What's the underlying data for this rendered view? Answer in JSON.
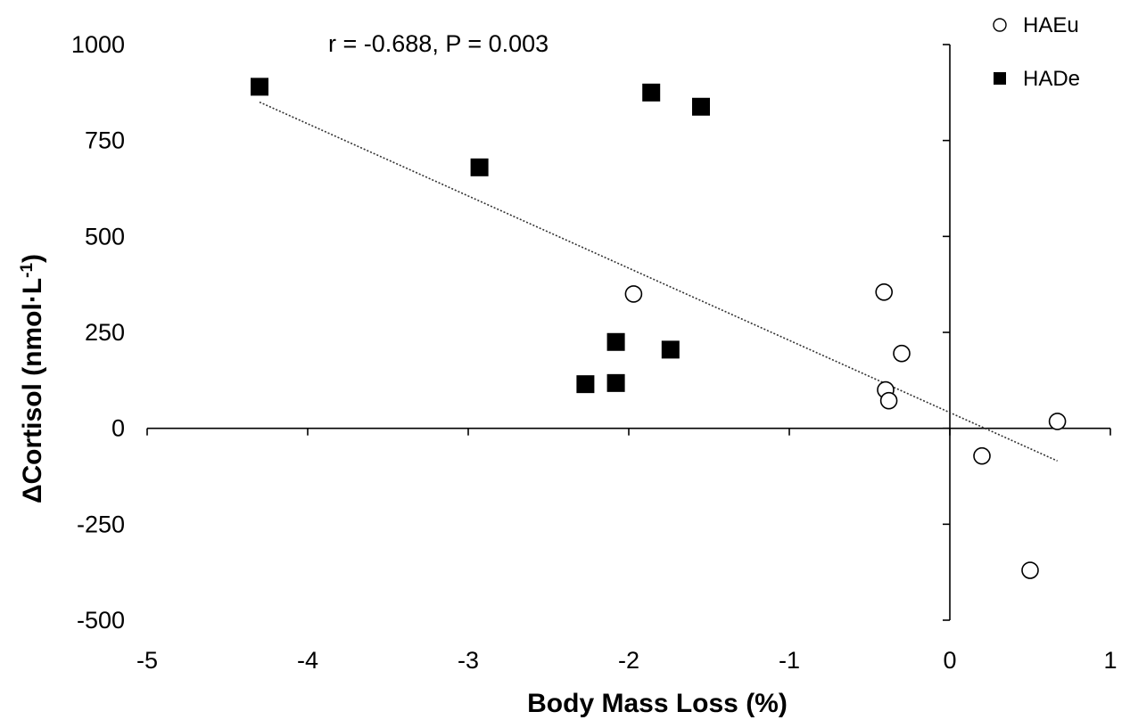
{
  "chart_data": {
    "type": "scatter",
    "title": "",
    "annotation": "r = -0.688, P = 0.003",
    "xlabel": "Body Mass Loss (%)",
    "ylabel_prefix": "ΔCortisol (nmol·L",
    "ylabel_sup": "-1",
    "ylabel_suffix": ")",
    "xlim": [
      -5,
      1
    ],
    "ylim": [
      -500,
      1000
    ],
    "x_ticks": [
      -5,
      -4,
      -3,
      -2,
      -1,
      0,
      1
    ],
    "y_ticks": [
      1000,
      750,
      500,
      250,
      0,
      -250,
      -500
    ],
    "grid": false,
    "legend_position": "top-right",
    "series": [
      {
        "name": "HAEu",
        "marker": "open-circle",
        "color": "#000000",
        "points": [
          {
            "x": -1.97,
            "y": 350
          },
          {
            "x": -0.41,
            "y": 355
          },
          {
            "x": -0.3,
            "y": 195
          },
          {
            "x": -0.4,
            "y": 100
          },
          {
            "x": -0.38,
            "y": 72
          },
          {
            "x": 0.67,
            "y": 18
          },
          {
            "x": 0.2,
            "y": -72
          },
          {
            "x": 0.5,
            "y": -370
          }
        ]
      },
      {
        "name": "HADe",
        "marker": "filled-square",
        "color": "#000000",
        "points": [
          {
            "x": -4.3,
            "y": 890
          },
          {
            "x": -1.86,
            "y": 875
          },
          {
            "x": -1.55,
            "y": 838
          },
          {
            "x": -2.93,
            "y": 680
          },
          {
            "x": -2.08,
            "y": 225
          },
          {
            "x": -1.74,
            "y": 205
          },
          {
            "x": -2.27,
            "y": 115
          },
          {
            "x": -2.08,
            "y": 118
          }
        ]
      }
    ],
    "trendline": {
      "style": "dotted",
      "x_start": -4.3,
      "x_end": 0.67,
      "y_start": 850,
      "y_end": -85
    }
  }
}
